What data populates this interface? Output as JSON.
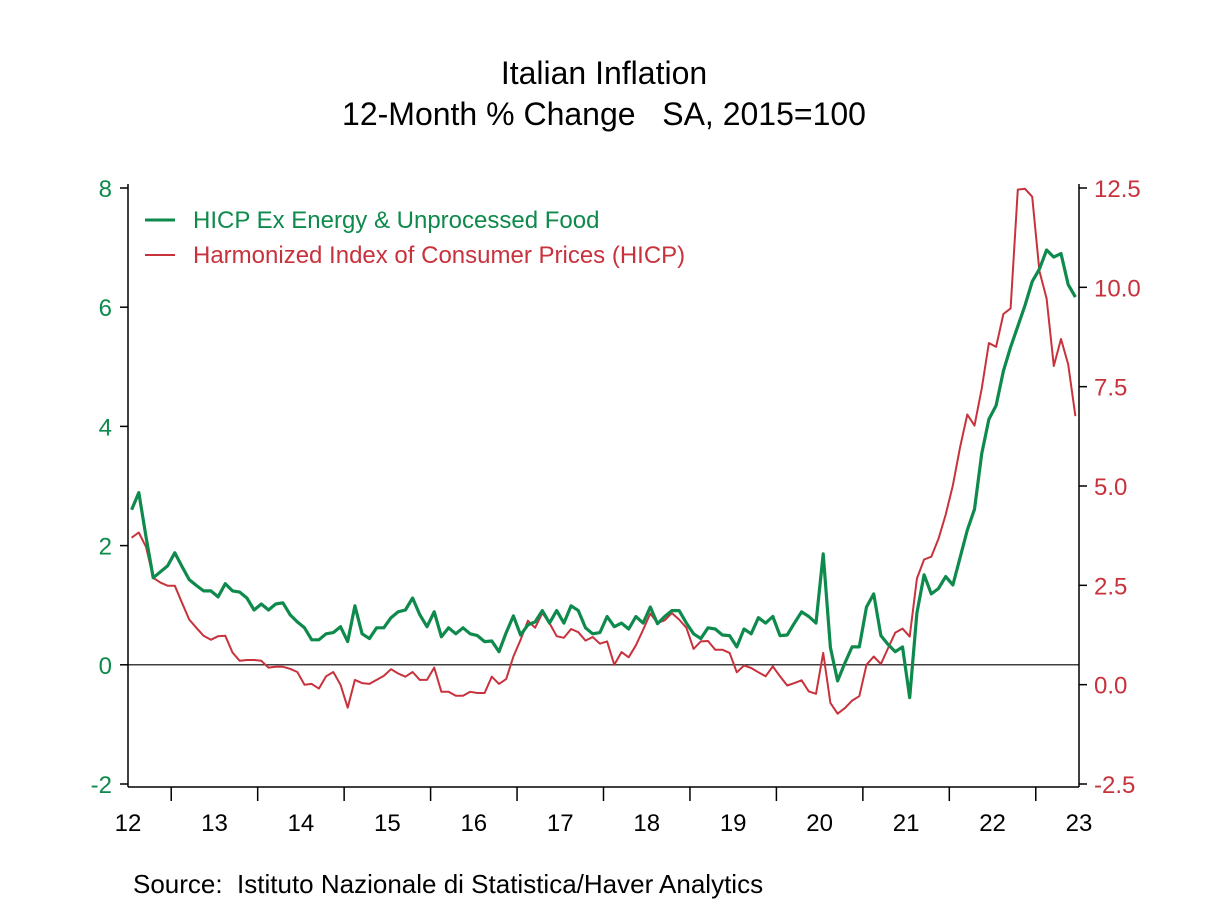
{
  "chart_data": {
    "type": "line",
    "title": "Italian Inflation",
    "subtitle": "12-Month % Change   SA, 2015=100",
    "source": "Source:  Istituto Nazionale di Statistica/Haver Analytics",
    "x_tick_labels": [
      "12",
      "13",
      "14",
      "15",
      "16",
      "17",
      "18",
      "19",
      "20",
      "21",
      "22",
      "23"
    ],
    "x_range": [
      "2012-07",
      "2023-06"
    ],
    "left_axis": {
      "ylim": [
        -2,
        8
      ],
      "ticks": [
        "-2",
        "0",
        "2",
        "4",
        "6",
        "8"
      ],
      "tick_values": [
        -2,
        0,
        2,
        4,
        6,
        8
      ],
      "color": "#0e8a4c"
    },
    "right_axis": {
      "ylim": [
        -2.5,
        12.5
      ],
      "ticks": [
        "-2.5",
        "0.0",
        "2.5",
        "5.0",
        "7.5",
        "10.0",
        "12.5"
      ],
      "tick_values": [
        -2.5,
        0,
        2.5,
        5,
        7.5,
        10,
        12.5
      ],
      "color": "#c8323c"
    },
    "zero_line": true,
    "grid": false,
    "legend_position": "top-left",
    "series": [
      {
        "name": "HICP Ex Energy & Unprocessed Food",
        "axis": "left",
        "color": "#0e8a4c",
        "values": [
          2.6,
          2.89,
          2.15,
          1.46,
          1.56,
          1.66,
          1.88,
          1.65,
          1.43,
          1.33,
          1.24,
          1.24,
          1.14,
          1.36,
          1.24,
          1.22,
          1.12,
          0.92,
          1.02,
          0.92,
          1.02,
          1.04,
          0.84,
          0.72,
          0.62,
          0.42,
          0.42,
          0.52,
          0.54,
          0.64,
          0.39,
          0.99,
          0.52,
          0.44,
          0.62,
          0.62,
          0.79,
          0.89,
          0.92,
          1.12,
          0.84,
          0.64,
          0.89,
          0.47,
          0.62,
          0.52,
          0.62,
          0.52,
          0.49,
          0.39,
          0.4,
          0.22,
          0.54,
          0.82,
          0.5,
          0.67,
          0.72,
          0.91,
          0.7,
          0.91,
          0.7,
          0.99,
          0.91,
          0.62,
          0.52,
          0.54,
          0.81,
          0.64,
          0.7,
          0.6,
          0.81,
          0.7,
          0.97,
          0.69,
          0.81,
          0.91,
          0.91,
          0.7,
          0.52,
          0.44,
          0.62,
          0.6,
          0.5,
          0.49,
          0.3,
          0.6,
          0.52,
          0.79,
          0.7,
          0.81,
          0.49,
          0.5,
          0.7,
          0.89,
          0.81,
          0.7,
          1.86,
          0.29,
          -0.27,
          0.03,
          0.3,
          0.3,
          0.97,
          1.19,
          0.49,
          0.34,
          0.22,
          0.3,
          -0.55,
          0.87,
          1.51,
          1.19,
          1.28,
          1.48,
          1.34,
          1.8,
          2.26,
          2.61,
          3.54,
          4.12,
          4.35,
          4.93,
          5.33,
          5.68,
          6.03,
          6.43,
          6.64,
          6.96,
          6.84,
          6.9,
          6.38,
          6.17
        ]
      },
      {
        "name": "Harmonized Index of Consumer Prices (HICP)",
        "axis": "right",
        "color": "#c8323c",
        "values": [
          3.7,
          3.83,
          3.47,
          2.69,
          2.57,
          2.49,
          2.49,
          2.06,
          1.64,
          1.43,
          1.23,
          1.13,
          1.22,
          1.23,
          0.81,
          0.6,
          0.62,
          0.62,
          0.6,
          0.43,
          0.45,
          0.45,
          0.4,
          0.32,
          0.0,
          0.02,
          -0.1,
          0.21,
          0.32,
          0.0,
          -0.58,
          0.12,
          0.04,
          0.02,
          0.12,
          0.22,
          0.39,
          0.28,
          0.2,
          0.32,
          0.12,
          0.12,
          0.43,
          -0.18,
          -0.18,
          -0.28,
          -0.28,
          -0.18,
          -0.21,
          -0.21,
          0.2,
          0.02,
          0.14,
          0.71,
          1.13,
          1.61,
          1.43,
          1.8,
          1.55,
          1.22,
          1.18,
          1.4,
          1.32,
          1.11,
          1.2,
          1.03,
          1.09,
          0.5,
          0.82,
          0.69,
          0.99,
          1.38,
          1.79,
          1.55,
          1.62,
          1.8,
          1.64,
          1.43,
          0.9,
          1.09,
          1.1,
          0.88,
          0.88,
          0.8,
          0.31,
          0.48,
          0.42,
          0.31,
          0.21,
          0.46,
          0.21,
          -0.02,
          0.04,
          0.11,
          -0.17,
          -0.23,
          0.8,
          -0.46,
          -0.73,
          -0.59,
          -0.4,
          -0.29,
          0.5,
          0.71,
          0.52,
          0.92,
          1.31,
          1.41,
          1.21,
          2.67,
          3.15,
          3.22,
          3.67,
          4.28,
          5.02,
          5.98,
          6.8,
          6.52,
          7.45,
          8.6,
          8.5,
          9.33,
          9.47,
          12.46,
          12.48,
          12.28,
          10.41,
          9.72,
          8.02,
          8.7,
          8.06,
          6.76
        ]
      }
    ]
  }
}
